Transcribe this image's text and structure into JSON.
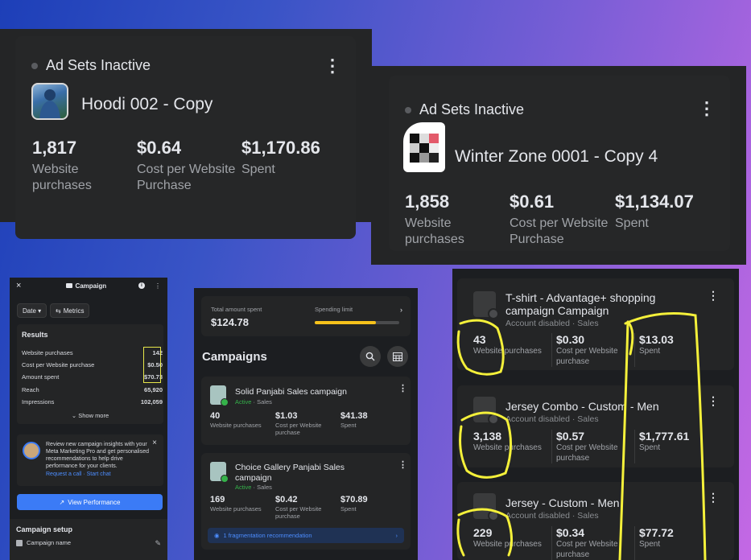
{
  "card1": {
    "status": "Ad Sets Inactive",
    "name": "Hoodi 002 - Copy",
    "metrics": [
      {
        "value": "1,817",
        "label": "Website purchases"
      },
      {
        "value": "$0.64",
        "label": "Cost per Website Purchase"
      },
      {
        "value": "$1,170.86",
        "label": "Spent"
      }
    ]
  },
  "card2": {
    "status": "Ad Sets Inactive",
    "name": "Winter Zone 0001 - Copy 4",
    "metrics": [
      {
        "value": "1,858",
        "label": "Website purchases"
      },
      {
        "value": "$0.61",
        "label": "Cost per Website Purchase"
      },
      {
        "value": "$1,134.07",
        "label": "Spent"
      }
    ]
  },
  "phone1": {
    "close": "×",
    "title": "Campaign",
    "date_chip": "Date ▾",
    "metrics_chip": "Metrics",
    "results_title": "Results",
    "rows": [
      {
        "label": "Website purchases",
        "value": "142"
      },
      {
        "label": "Cost per Website purchase",
        "value": "$0.50"
      },
      {
        "label": "Amount spent",
        "value": "$70.73"
      },
      {
        "label": "Reach",
        "value": "65,920"
      },
      {
        "label": "Impressions",
        "value": "102,059"
      }
    ],
    "show_more": "Show more",
    "insight_text": "Review new campaign insights with your Meta Marketing Pro and get personalised recommendations to help drive performance for your clients.",
    "insight_links": "Request a call · Start chat",
    "view_performance": "View Performance",
    "setup_title": "Campaign setup",
    "setup_item": "Campaign name"
  },
  "phone2": {
    "total_label": "Total amount spent",
    "total_value": "$124.78",
    "limit_label": "Spending limit",
    "limit_progress": 0.72,
    "heading": "Campaigns",
    "campaigns": [
      {
        "name": "Solid Panjabi Sales campaign",
        "status": "Active",
        "objective": "Sales",
        "m1v": "40",
        "m1l": "Website purchases",
        "m2v": "$1.03",
        "m2l": "Cost per Website purchase",
        "m3v": "$41.38",
        "m3l": "Spent"
      },
      {
        "name": "Choice Gallery Panjabi Sales campaign",
        "status": "Active",
        "objective": "Sales",
        "m1v": "169",
        "m1l": "Website purchases",
        "m2v": "$0.42",
        "m2l": "Cost per Website purchase",
        "m3v": "$70.89",
        "m3l": "Spent"
      }
    ],
    "recommendation": "1 fragmentation recommendation"
  },
  "phone3": {
    "cards": [
      {
        "title": "T-shirt - Advantage+ shopping campaign  Campaign",
        "status": "Account disabled · Sales",
        "m1v": "43",
        "m1l": "Website purchases",
        "m2v": "$0.30",
        "m2l": "Cost per Website purchase",
        "m3v": "$13.03",
        "m3l": "Spent"
      },
      {
        "title": "Jersey Combo - Custom - Men",
        "status": "Account disabled · Sales",
        "m1v": "3,138",
        "m1l": "Website purchases",
        "m2v": "$0.57",
        "m2l": "Cost per Website purchase",
        "m3v": "$1,777.61",
        "m3l": "Spent"
      },
      {
        "title": "Jersey - Custom - Men",
        "status": "Account disabled · Sales",
        "m1v": "229",
        "m1l": "Website purchases",
        "m2v": "$0.34",
        "m2l": "Cost per Website purchase",
        "m3v": "$77.72",
        "m3l": "Spent"
      }
    ]
  },
  "colors": {
    "annotation": "#f4f03a",
    "accent_blue": "#3b7bf6",
    "active_green": "#35b24a",
    "progress_yellow": "#f7c21b"
  }
}
